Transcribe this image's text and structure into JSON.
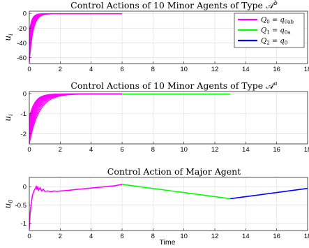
{
  "chart_data": [
    {
      "type": "line",
      "title": "Control Actions of 10 Minor Agents of Type 𝒜",
      "title_sup": "b",
      "ylabel": "u",
      "ylabel_sub": "i",
      "xlabel": "",
      "xlim": [
        0,
        18
      ],
      "ylim": [
        -68,
        3
      ],
      "xticks": [
        0,
        2,
        4,
        6,
        8,
        10,
        12,
        14,
        16,
        18
      ],
      "yticks": [
        0,
        -20,
        -40,
        -60
      ],
      "grid": true,
      "legend": "top-right",
      "series": [
        {
          "name": "Q₀ = q₀ₐᵦ",
          "legend_name": "Q",
          "legend_sub": "0",
          "legend_rhs": "= q",
          "legend_rhs_sub": "0ab",
          "color": "#ff00ff",
          "family": {
            "count": 10,
            "t_start": 0,
            "t_end": 6,
            "initial_min": -67,
            "initial_max": -26,
            "final": -0.5,
            "decay_min": 4.2,
            "decay_max": 6.5
          }
        }
      ],
      "legend_entries": [
        {
          "label_main": "Q",
          "label_sub": "0",
          "rhs": "= q",
          "rhs_sub": "0ab",
          "color": "#ff00ff"
        },
        {
          "label_main": "Q",
          "label_sub": "1",
          "rhs": "= q",
          "rhs_sub": "0a",
          "color": "#00ff00"
        },
        {
          "label_main": "Q",
          "label_sub": "2",
          "rhs": "= q",
          "rhs_sub": "0",
          "color": "#0000ff"
        }
      ]
    },
    {
      "type": "line",
      "title": "Control Actions of 10 Minor Agents of Type 𝒜",
      "title_sup": "a",
      "ylabel": "u",
      "ylabel_sub": "i",
      "xlabel": "",
      "xlim": [
        0,
        18
      ],
      "ylim": [
        -2.5,
        0.1
      ],
      "xticks": [
        0,
        2,
        4,
        6,
        8,
        10,
        12,
        14,
        16,
        18
      ],
      "yticks": [
        0,
        -1,
        -2
      ],
      "grid": true,
      "series": [
        {
          "name": "Q0 segment",
          "color": "#ff00ff",
          "family": {
            "count": 10,
            "t_start": 0,
            "t_end": 6,
            "initial_min": -2.5,
            "initial_max": -1.2,
            "final": -0.02,
            "decay_min": 1.6,
            "decay_max": 2.8
          }
        },
        {
          "name": "Q1 segment",
          "color": "#00ff00",
          "x": [
            6,
            13
          ],
          "y": [
            -0.03,
            -0.03
          ]
        }
      ]
    },
    {
      "type": "line",
      "title": "Control Action of Major Agent",
      "ylabel": "u",
      "ylabel_sub": "0",
      "xlabel": "Time",
      "xlim": [
        0,
        18
      ],
      "ylim": [
        -1.2,
        0.25
      ],
      "xticks": [
        0,
        2,
        4,
        6,
        8,
        10,
        12,
        14,
        16,
        18
      ],
      "yticks": [
        0,
        -0.5,
        -1
      ],
      "grid": true,
      "series": [
        {
          "name": "Q0 segment",
          "color": "#ff00ff",
          "x": [
            0,
            0.05,
            0.1,
            0.15,
            0.2,
            0.25,
            0.3,
            0.35,
            0.4,
            0.45,
            0.5,
            0.55,
            0.6,
            0.7,
            0.8,
            0.9,
            1.0,
            1.2,
            1.4,
            1.6,
            1.8,
            2.0,
            2.3,
            2.6,
            3.0,
            3.5,
            4.0,
            4.5,
            5.0,
            5.5,
            6.0
          ],
          "y": [
            -1.15,
            -0.75,
            -0.55,
            -0.4,
            -0.25,
            -0.18,
            -0.12,
            -0.08,
            -0.05,
            0.02,
            -0.08,
            0.0,
            -0.1,
            -0.03,
            -0.12,
            -0.07,
            -0.13,
            -0.12,
            -0.14,
            -0.12,
            -0.13,
            -0.12,
            -0.11,
            -0.1,
            -0.08,
            -0.06,
            -0.04,
            -0.02,
            0.0,
            0.02,
            0.06
          ]
        },
        {
          "name": "Q1 segment",
          "color": "#00ff00",
          "x": [
            6,
            13
          ],
          "y": [
            0.06,
            -0.33
          ]
        },
        {
          "name": "Q2 segment",
          "color": "#0000ff",
          "x": [
            13,
            18
          ],
          "y": [
            -0.33,
            -0.05
          ]
        }
      ]
    }
  ]
}
